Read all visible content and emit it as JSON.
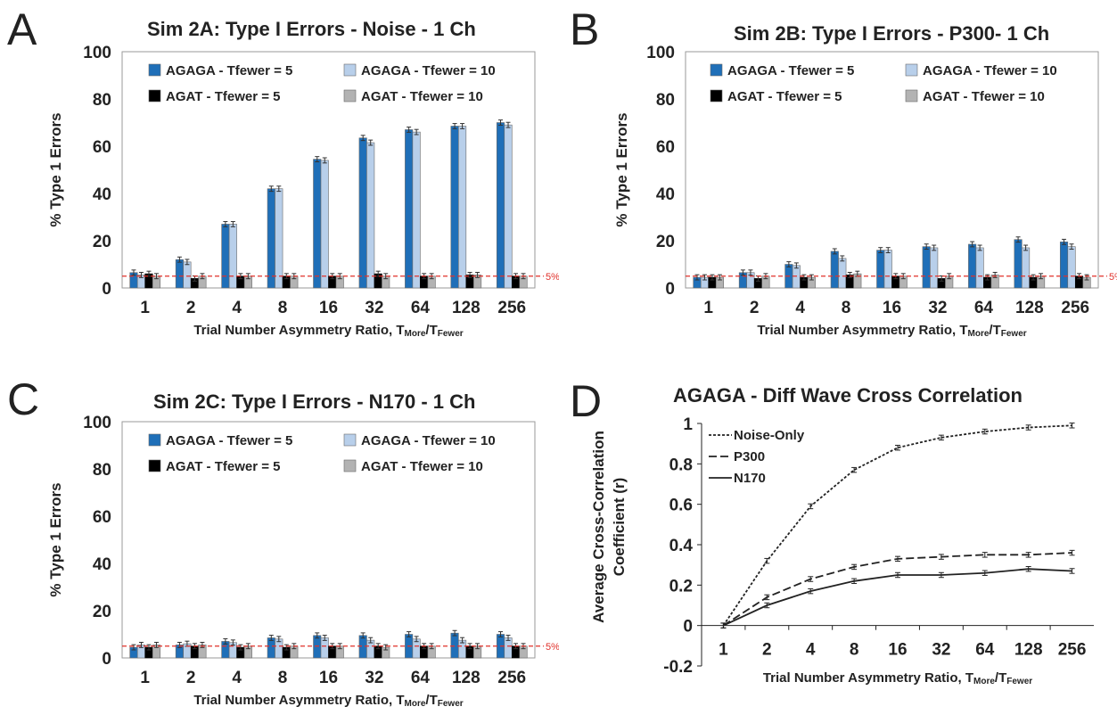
{
  "panels": [
    {
      "letter": "A",
      "title": "Sim 2A: Type I Errors - Noise - 1 Ch"
    },
    {
      "letter": "B",
      "title": "Sim 2B: Type I Errors - P300- 1 Ch"
    },
    {
      "letter": "C",
      "title": "Sim 2C: Type I Errors - N170 - 1 Ch"
    },
    {
      "letter": "D",
      "title": "AGAGA - Diff Wave Cross Correlation"
    }
  ],
  "chart_data": [
    {
      "type": "bar",
      "title": "Sim 2A: Type I Errors - Noise - 1 Ch",
      "ylabel": "% Type 1 Errors",
      "xlabel": "Trial Number Asymmetry Ratio, T",
      "xlabel_sub1": "More",
      "xlabel_mid": "/T",
      "xlabel_sub2": "Fewer",
      "categories": [
        "1",
        "2",
        "4",
        "8",
        "16",
        "32",
        "64",
        "128",
        "256"
      ],
      "ylim": [
        0,
        100
      ],
      "yticks": [
        0,
        20,
        40,
        60,
        80,
        100
      ],
      "reference_line": {
        "value": 5,
        "label": "5%",
        "color": "#e0302a"
      },
      "legend": "top",
      "series": [
        {
          "name": "AGAGA - Tfewer = 5",
          "color": "#1f6fb8",
          "values": [
            6.5,
            12,
            27,
            42,
            54.5,
            63.5,
            67,
            68.5,
            70
          ]
        },
        {
          "name": "AGAGA - Tfewer = 10",
          "color": "#b8cfea",
          "values": [
            5.5,
            11,
            27,
            42,
            54,
            61.5,
            66,
            68.5,
            69
          ]
        },
        {
          "name": "AGAT - Tfewer = 5",
          "color": "#000000",
          "values": [
            6,
            4,
            5,
            5,
            5,
            6,
            5,
            5.5,
            5
          ]
        },
        {
          "name": "AGAT - Tfewer = 10",
          "color": "#b3b3b3",
          "values": [
            5,
            5,
            5,
            5,
            5,
            5,
            5,
            5.5,
            5
          ]
        }
      ]
    },
    {
      "type": "bar",
      "title": "Sim 2B: Type I Errors - P300- 1 Ch",
      "ylabel": "% Type 1 Errors",
      "xlabel": "Trial Number Asymmetry Ratio, T",
      "xlabel_sub1": "More",
      "xlabel_mid": "/T",
      "xlabel_sub2": "Fewer",
      "categories": [
        "1",
        "2",
        "4",
        "8",
        "16",
        "32",
        "64",
        "128",
        "256"
      ],
      "ylim": [
        0,
        100
      ],
      "yticks": [
        0,
        20,
        40,
        60,
        80,
        100
      ],
      "reference_line": {
        "value": 5,
        "label": "5%",
        "color": "#e0302a"
      },
      "legend": "top",
      "series": [
        {
          "name": "AGAGA - Tfewer = 5",
          "color": "#1f6fb8",
          "values": [
            4.5,
            6.5,
            10,
            15.5,
            16,
            17.5,
            18.5,
            20.5,
            19.5
          ]
        },
        {
          "name": "AGAGA - Tfewer = 10",
          "color": "#b8cfea",
          "values": [
            4.5,
            6.5,
            9.5,
            12.5,
            16,
            17,
            17,
            17,
            17.5
          ]
        },
        {
          "name": "AGAT - Tfewer = 5",
          "color": "#000000",
          "values": [
            4.5,
            4,
            4.5,
            5.5,
            5,
            4,
            4.5,
            4.5,
            5
          ]
        },
        {
          "name": "AGAT - Tfewer = 10",
          "color": "#b3b3b3",
          "values": [
            4.5,
            5,
            4.5,
            6,
            5,
            5,
            5.5,
            5,
            4.5
          ]
        }
      ]
    },
    {
      "type": "bar",
      "title": "Sim 2C: Type I Errors - N170 - 1 Ch",
      "ylabel": "% Type 1 Errors",
      "xlabel": "Trial Number Asymmetry Ratio, T",
      "xlabel_sub1": "More",
      "xlabel_mid": "/T",
      "xlabel_sub2": "Fewer",
      "categories": [
        "1",
        "2",
        "4",
        "8",
        "16",
        "32",
        "64",
        "128",
        "256"
      ],
      "ylim": [
        0,
        100
      ],
      "yticks": [
        0,
        20,
        40,
        60,
        80,
        100
      ],
      "reference_line": {
        "value": 5,
        "label": "5%",
        "color": "#e0302a"
      },
      "legend": "top",
      "series": [
        {
          "name": "AGAGA - Tfewer = 5",
          "color": "#1f6fb8",
          "values": [
            4.5,
            5.5,
            7,
            8.5,
            9.5,
            9.5,
            10,
            10.5,
            10
          ]
        },
        {
          "name": "AGAGA - Tfewer = 10",
          "color": "#b8cfea",
          "values": [
            5.5,
            6,
            6.5,
            8,
            8.5,
            7.5,
            8,
            7.5,
            8.5
          ]
        },
        {
          "name": "AGAT - Tfewer = 5",
          "color": "#000000",
          "values": [
            4.5,
            5,
            4.5,
            4.5,
            5,
            5,
            5,
            5,
            5
          ]
        },
        {
          "name": "AGAT - Tfewer = 10",
          "color": "#b3b3b3",
          "values": [
            5.5,
            5.5,
            5,
            5,
            5,
            4.5,
            5,
            5,
            5
          ]
        }
      ]
    },
    {
      "type": "line",
      "title": "AGAGA - Diff Wave Cross Correlation",
      "ylabel_line1": "Average Cross-Correlation",
      "ylabel_line2": "Coefficient (r)",
      "xlabel": "Trial Number Asymmetry Ratio, T",
      "xlabel_sub1": "More",
      "xlabel_mid": "/T",
      "xlabel_sub2": "Fewer",
      "categories": [
        "1",
        "2",
        "4",
        "8",
        "16",
        "32",
        "64",
        "128",
        "256"
      ],
      "ylim": [
        -0.2,
        1
      ],
      "yticks": [
        "-0.2",
        "0",
        "0.2",
        "0.4",
        "0.6",
        "0.8",
        "1"
      ],
      "legend": "top-left",
      "series": [
        {
          "name": "Noise-Only",
          "dash": "dotted",
          "values": [
            0,
            0.32,
            0.59,
            0.77,
            0.88,
            0.93,
            0.96,
            0.98,
            0.99
          ]
        },
        {
          "name": "P300",
          "dash": "dashed",
          "values": [
            0,
            0.14,
            0.23,
            0.29,
            0.33,
            0.34,
            0.35,
            0.35,
            0.36
          ]
        },
        {
          "name": "N170",
          "dash": "solid",
          "values": [
            0,
            0.1,
            0.17,
            0.22,
            0.25,
            0.25,
            0.26,
            0.28,
            0.27
          ]
        }
      ]
    }
  ]
}
